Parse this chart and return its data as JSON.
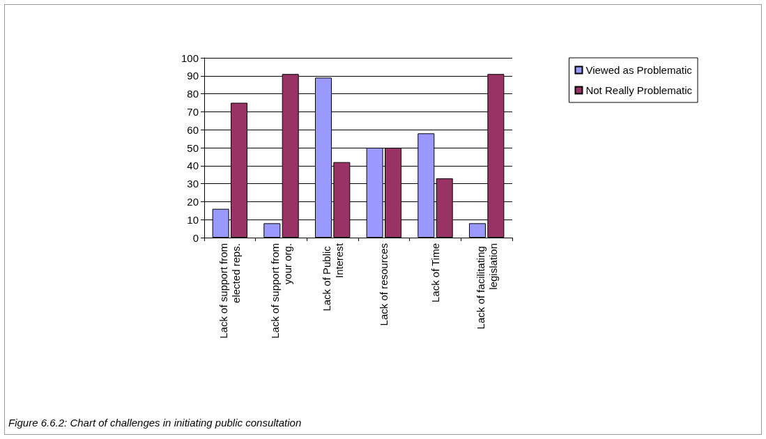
{
  "chart_data": {
    "type": "bar",
    "categories": [
      "Lack of support from elected reps.",
      "Lack of support from your org.",
      "Lack of Public Interest",
      "Lack of resources",
      "Lack of Time",
      "Lack of facilitating legislation"
    ],
    "series": [
      {
        "name": "Viewed as Problematic",
        "color": "#9999ff",
        "values": [
          16,
          8,
          89,
          50,
          58,
          8
        ]
      },
      {
        "name": "Not Really Problematic",
        "color": "#993366",
        "values": [
          75,
          91,
          42,
          50,
          33,
          91
        ]
      }
    ],
    "ylim": [
      0,
      100
    ],
    "yticks": [
      0,
      10,
      20,
      30,
      40,
      50,
      60,
      70,
      80,
      90,
      100
    ],
    "grid": "y",
    "legend": "right",
    "annotations": [
      "Figure 6.6.2: Chart of challenges in initiating public consultation"
    ]
  }
}
